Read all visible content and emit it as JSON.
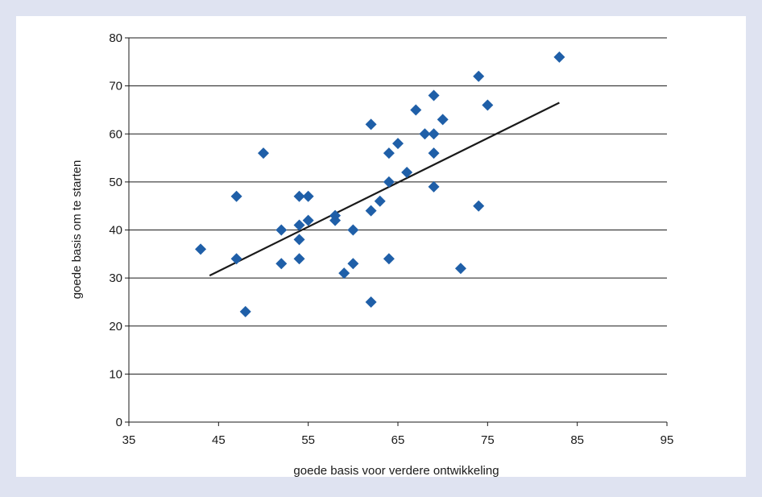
{
  "chart_data": {
    "type": "scatter",
    "title": "",
    "xlabel": "goede basis voor verdere ontwikkeling",
    "ylabel": "goede basis om te starten",
    "xlim": [
      35,
      95
    ],
    "ylim": [
      0,
      80
    ],
    "xticks": [
      35,
      45,
      55,
      65,
      75,
      85,
      95
    ],
    "yticks": [
      0,
      10,
      20,
      30,
      40,
      50,
      60,
      70,
      80
    ],
    "grid": "horizontal",
    "colors": {
      "marker": "#1f5fa8",
      "trendline": "#1a1a1a",
      "background": "#dfe3f1",
      "plot_area": "#ffffff"
    },
    "series": [
      {
        "points": [
          [
            43,
            36
          ],
          [
            47,
            47
          ],
          [
            47,
            34
          ],
          [
            48,
            23
          ],
          [
            50,
            56
          ],
          [
            52,
            40
          ],
          [
            52,
            33
          ],
          [
            54,
            47
          ],
          [
            54,
            41
          ],
          [
            54,
            38
          ],
          [
            54,
            34
          ],
          [
            55,
            47
          ],
          [
            55,
            42
          ],
          [
            58,
            43
          ],
          [
            58,
            42
          ],
          [
            59,
            31
          ],
          [
            60,
            40
          ],
          [
            60,
            33
          ],
          [
            62,
            62
          ],
          [
            62,
            44
          ],
          [
            62,
            25
          ],
          [
            63,
            46
          ],
          [
            64,
            56
          ],
          [
            64,
            50
          ],
          [
            64,
            34
          ],
          [
            65,
            58
          ],
          [
            66,
            52
          ],
          [
            67,
            65
          ],
          [
            68,
            60
          ],
          [
            69,
            68
          ],
          [
            69,
            60
          ],
          [
            69,
            56
          ],
          [
            69,
            49
          ],
          [
            70,
            63
          ],
          [
            72,
            32
          ],
          [
            74,
            72
          ],
          [
            74,
            45
          ],
          [
            75,
            66
          ],
          [
            83,
            76
          ]
        ]
      }
    ],
    "trendline": {
      "x": [
        44,
        83
      ],
      "y": [
        30.5,
        66.5
      ]
    }
  }
}
